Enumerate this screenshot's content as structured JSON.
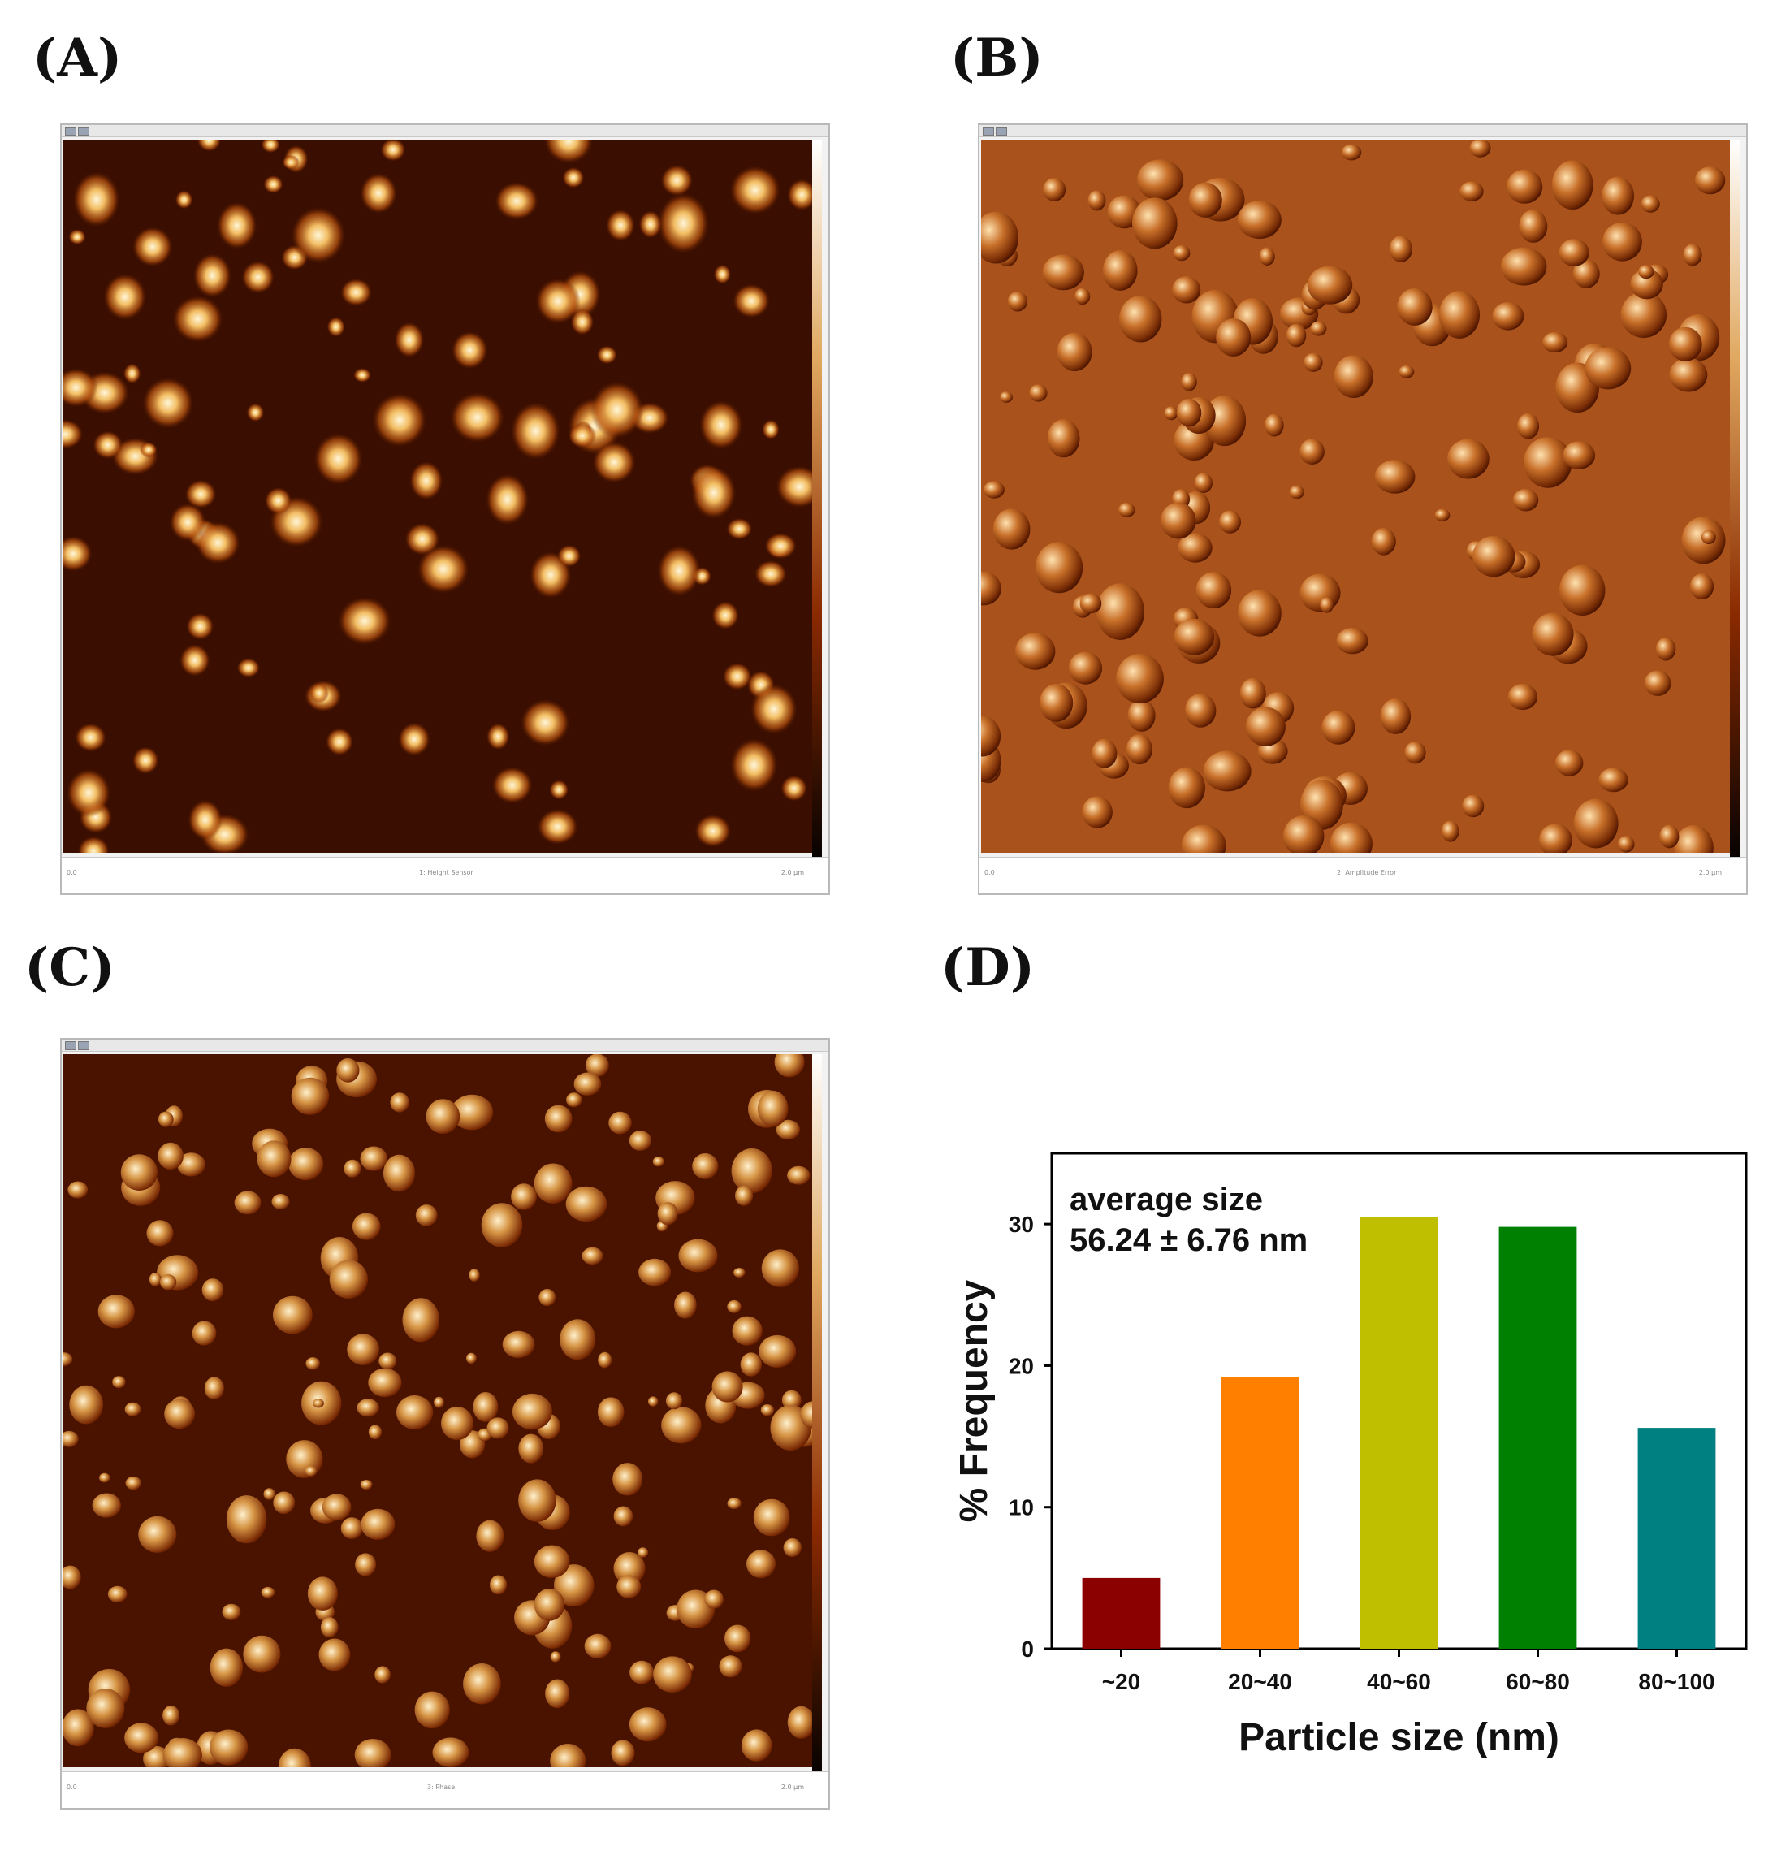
{
  "figure": {
    "panels": {
      "A": {
        "label": "(A)",
        "footer_left": "0.0",
        "footer_center": "1: Height Sensor",
        "footer_right": "2.0 µm"
      },
      "B": {
        "label": "(B)",
        "footer_left": "0.0",
        "footer_center": "2: Amplitude Error",
        "footer_right": "2.0 µm"
      },
      "C": {
        "label": "(C)",
        "footer_left": "0.0",
        "footer_center": "3: Phase",
        "footer_right": "2.0 µm"
      },
      "D": {
        "label": "(D)"
      }
    },
    "colors": {
      "afm_dark": "#2a0800",
      "afm_mid": "#8a3a0a",
      "afm_light": "#f6d49a",
      "amplitude_bg": "#a9521c"
    }
  },
  "chart_data": {
    "type": "bar",
    "categories": [
      "~20",
      "20~40",
      "40~60",
      "60~80",
      "80~100"
    ],
    "values": [
      5.0,
      19.2,
      30.5,
      29.8,
      15.6
    ],
    "colors": [
      "#8b0000",
      "#ff7f00",
      "#bfbf00",
      "#008000",
      "#008080"
    ],
    "title": "",
    "xlabel": "Particle size (nm)",
    "ylabel": "% Frequency",
    "ylim": [
      0,
      35
    ],
    "yticks": [
      0,
      10,
      20,
      30
    ],
    "annotation": [
      "average size",
      "56.24 ±  6.76 nm"
    ],
    "grid": false
  }
}
